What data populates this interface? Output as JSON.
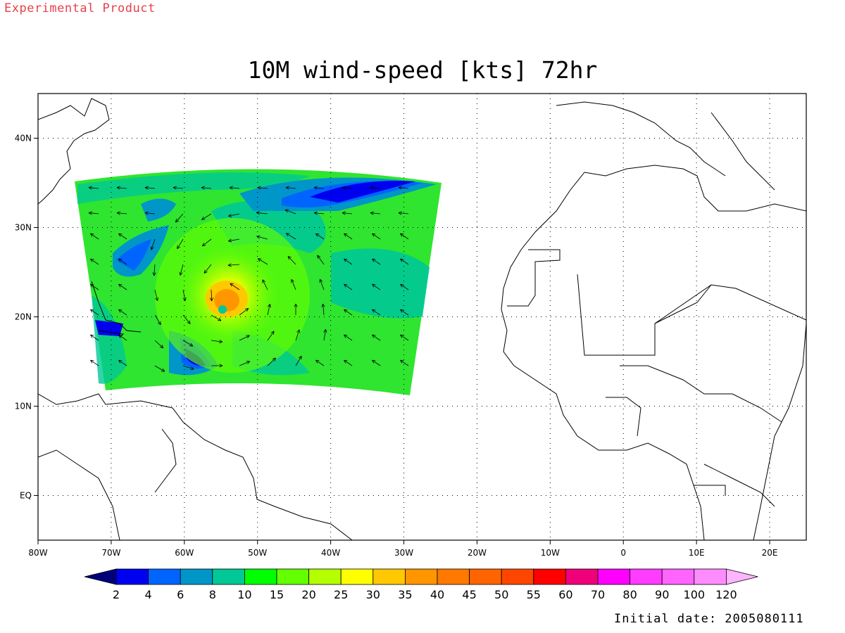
{
  "header": {
    "product_note": "Experimental Product",
    "title": "10M wind-speed [kts] 72hr"
  },
  "footer": {
    "initial_date": "Initial date: 2005080111"
  },
  "map": {
    "lon_ticks": [
      "80W",
      "70W",
      "60W",
      "50W",
      "40W",
      "30W",
      "20W",
      "10W",
      "0",
      "10E",
      "20E"
    ],
    "lat_ticks": [
      "40N",
      "30N",
      "20N",
      "10N",
      "EQ"
    ],
    "lon_range": [
      -80,
      25
    ],
    "lat_range": [
      -5,
      45
    ]
  },
  "colorbar": {
    "labels": [
      "2",
      "4",
      "6",
      "8",
      "10",
      "15",
      "20",
      "25",
      "30",
      "35",
      "40",
      "45",
      "50",
      "55",
      "60",
      "70",
      "80",
      "90",
      "100",
      "120"
    ],
    "colors": [
      "#00007a",
      "#0000f0",
      "#0064ff",
      "#0096c8",
      "#00c896",
      "#00ff00",
      "#64ff00",
      "#b4ff00",
      "#ffff00",
      "#ffc800",
      "#ff9600",
      "#ff7800",
      "#ff6400",
      "#ff4600",
      "#ff0000",
      "#f00078",
      "#ff00ff",
      "#ff3cff",
      "#ff64ff",
      "#ff8cff",
      "#ffb4ff"
    ]
  },
  "colors": {
    "product_note": "#e8404a",
    "coastline": "#000000",
    "grid": "#000000"
  }
}
